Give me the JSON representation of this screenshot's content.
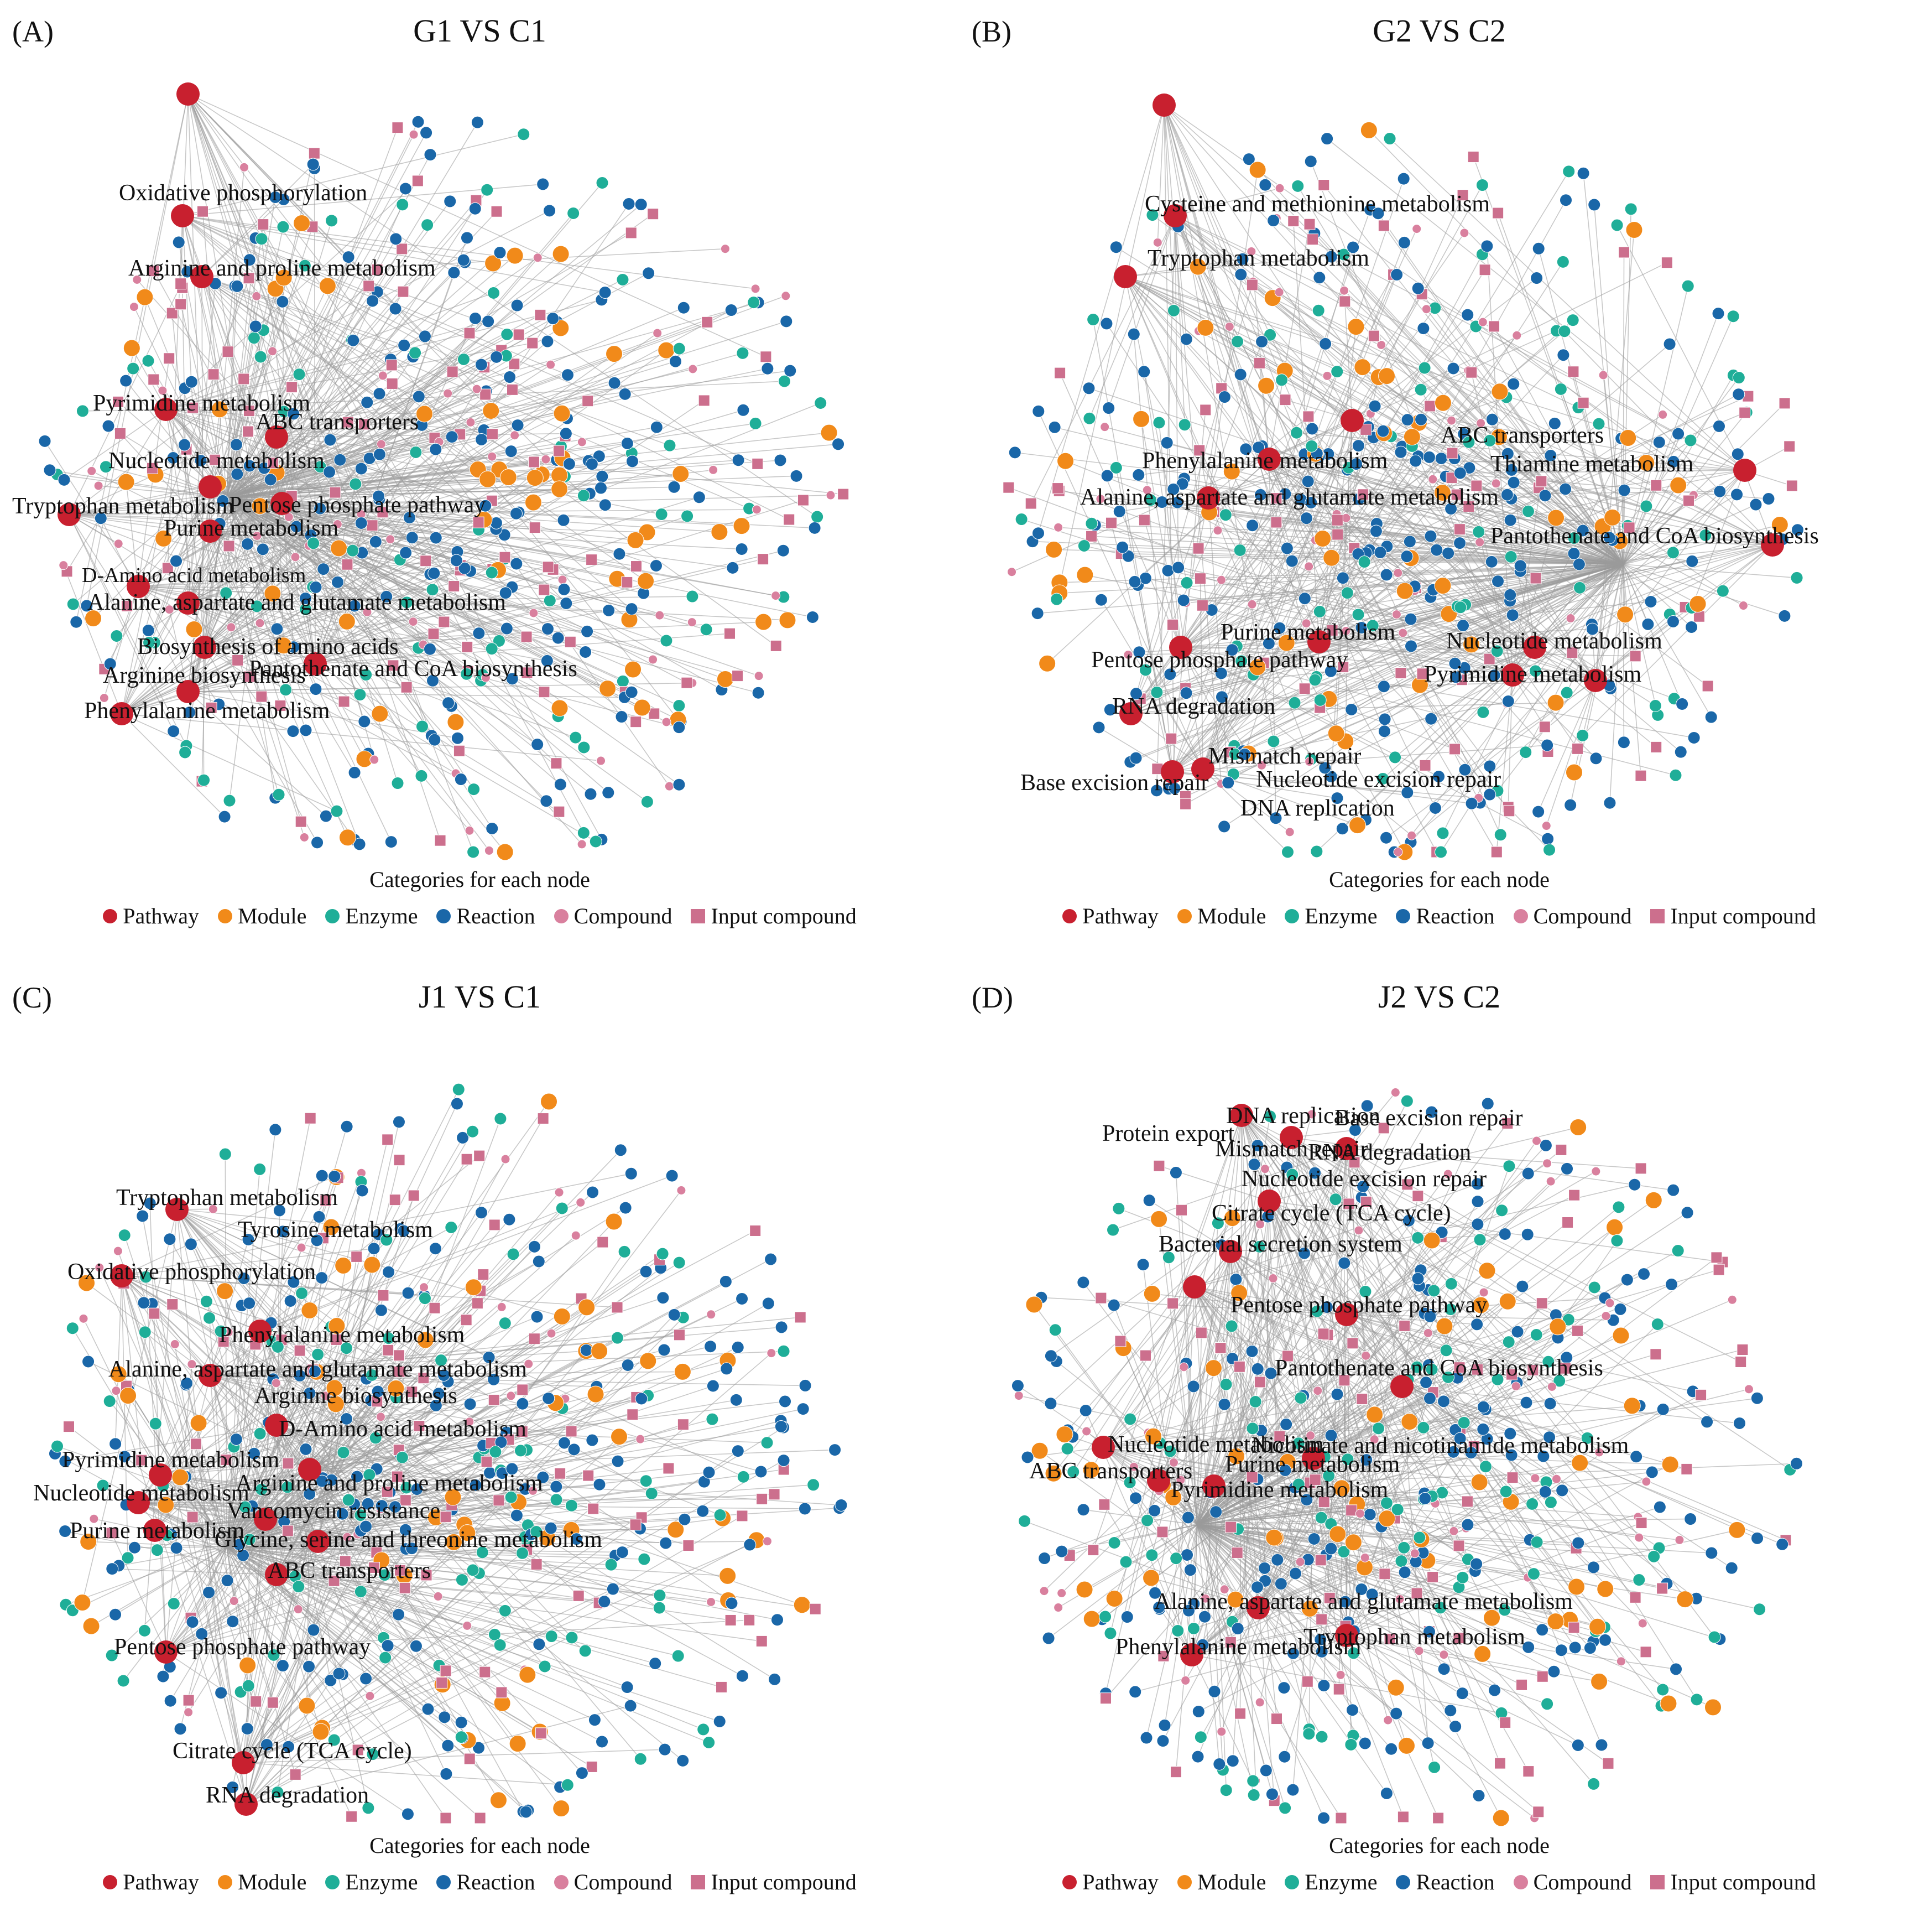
{
  "colors": {
    "pathway": "#c8202f",
    "module": "#f18a1a",
    "enzyme": "#1fae98",
    "reaction": "#1a67a8",
    "compound": "#d9809e",
    "input_compound": "#cc6f8d",
    "edge": "#9b9b9b"
  },
  "legend": {
    "title": "Categories for each node",
    "items": [
      {
        "key": "pathway",
        "label": "Pathway",
        "shape": "circle"
      },
      {
        "key": "module",
        "label": "Module",
        "shape": "circle"
      },
      {
        "key": "enzyme",
        "label": "Enzyme",
        "shape": "circle"
      },
      {
        "key": "reaction",
        "label": "Reaction",
        "shape": "circle"
      },
      {
        "key": "compound",
        "label": "Compound",
        "shape": "circle"
      },
      {
        "key": "input_compound",
        "label": "Input compound",
        "shape": "square"
      }
    ]
  },
  "panels": [
    {
      "id": "a",
      "letter": "(A)",
      "title": "G1 VS C1",
      "pathways": [
        "Oxidative phosphorylation",
        "Arginine and proline metabolism",
        "Pyrimidine metabolism",
        "ABC transporters",
        "Nucleotide metabolism",
        "Tryptophan metabolism",
        "Pentose phosphate pathway",
        "Purine metabolism",
        "D-Amino acid metabolism",
        "Alanine, aspartate and glutamate metabolism",
        "Biosynthesis of amino acids",
        "Pantothenate and CoA biosynthesis",
        "Arginine biosynthesis",
        "Phenylalanine metabolism"
      ]
    },
    {
      "id": "b",
      "letter": "(B)",
      "title": "G2 VS C2",
      "pathways": [
        "Cysteine and methionine metabolism",
        "Tryptophan metabolism",
        "ABC transporters",
        "Phenylalanine metabolism",
        "Thiamine metabolism",
        "Alanine, aspartate and glutamate metabolism",
        "Pantothenate and CoA biosynthesis",
        "Purine metabolism",
        "Nucleotide metabolism",
        "Pentose phosphate pathway",
        "Pyrimidine metabolism",
        "RNA degradation",
        "Mismatch repair",
        "Base excision repair",
        "Nucleotide excision repair",
        "DNA replication"
      ]
    },
    {
      "id": "c",
      "letter": "(C)",
      "title": "J1 VS C1",
      "pathways": [
        "Tryptophan metabolism",
        "Tyrosine metabolism",
        "Oxidative phosphorylation",
        "Phenylalanine metabolism",
        "Alanine, aspartate and glutamate metabolism",
        "Arginine biosynthesis",
        "D-Amino acid metabolism",
        "Pyrimidine metabolism",
        "Arginine and proline metabolism",
        "Nucleotide metabolism",
        "Vancomycin resistance",
        "Purine metabolism",
        "Glycine, serine and threonine metabolism",
        "ABC transporters",
        "Pentose phosphate pathway",
        "Citrate cycle (TCA cycle)",
        "RNA degradation"
      ]
    },
    {
      "id": "d",
      "letter": "(D)",
      "title": "J2 VS C2",
      "pathways": [
        "DNA replication",
        "Base excision repair",
        "Protein export",
        "Mismatch repair",
        "RNA degradation",
        "Nucleotide excision repair",
        "Citrate cycle (TCA cycle)",
        "Bacterial secretion system",
        "Pentose phosphate pathway",
        "Pantothenate and CoA biosynthesis",
        "Nucleotide metabolism",
        "Nicotinate and nicotinamide metabolism",
        "ABC transporters",
        "Purine metabolism",
        "Pyrimidine metabolism",
        "Alanine, aspartate and glutamate metabolism",
        "Tryptophan metabolism",
        "Phenylalanine metabolism"
      ]
    }
  ]
}
